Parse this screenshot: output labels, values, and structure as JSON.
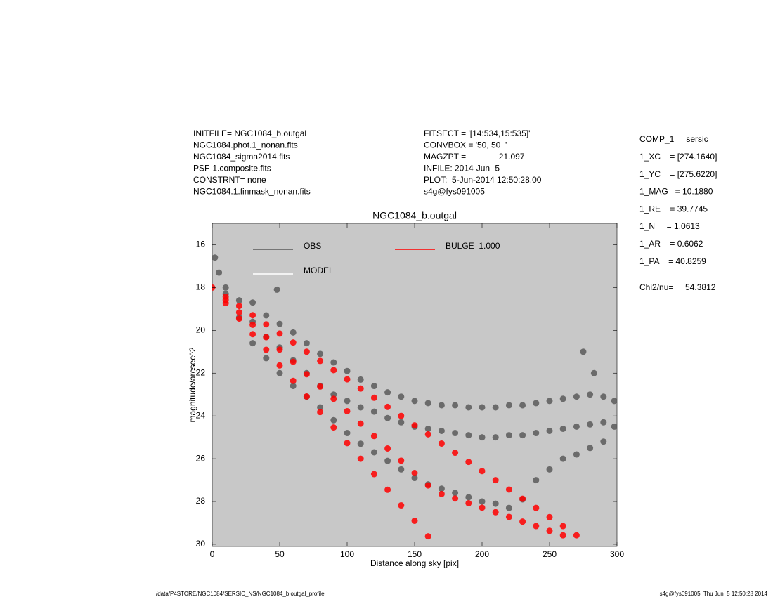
{
  "chart_data": {
    "type": "scatter",
    "title": "NGC1084_b.outgal",
    "xlabel": "Distance along sky [pix]",
    "ylabel": "magnitude/arcsec^2",
    "xlim": [
      0,
      300
    ],
    "ylim": [
      15,
      30.1
    ],
    "y_reversed": true,
    "xticks": [
      0,
      50,
      100,
      150,
      200,
      250,
      300
    ],
    "yticks": [
      16,
      18,
      20,
      22,
      24,
      26,
      28,
      30
    ],
    "info_left": [
      "INITFILE= NGC1084_b.outgal",
      "NGC1084.phot.1_nonan.fits",
      "NGC1084_sigma2014.fits",
      "PSF-1.composite.fits",
      "CONSTRNT= none",
      "NGC1084.1.finmask_nonan.fits"
    ],
    "info_middle": [
      "FITSECT = '[14:534,15:535]'",
      "CONVBOX = '50, 50  '",
      "MAGZPT =              21.097",
      "INFILE: 2014-Jun- 5",
      "PLOT:  5-Jun-2014 12:50:28.00",
      "s4g@fys091005"
    ],
    "parameters": [
      "COMP_1  = sersic",
      "1_XC    = [274.1640]",
      "1_YC    = [275.6220]",
      "1_MAG   = 10.1880",
      "1_RE    = 39.7745",
      "1_N     = 1.0613",
      "1_AR    = 0.6062",
      "1_PA    = 40.8259"
    ],
    "chi2": "Chi2/nu=     54.3812",
    "footer_left": "/data/P4STORE/NGC1084/SERSIC_NS/NGC1084_b.outgal_profile",
    "footer_right": "s4g@fys091005  Thu Jun  5 12:50:28 2014",
    "series": [
      {
        "name": "OBS",
        "color": "#5a5a5a",
        "x": [
          2,
          5,
          10,
          10,
          20,
          20,
          30,
          30,
          30,
          40,
          40,
          40,
          48,
          50,
          50,
          50,
          60,
          60,
          60,
          70,
          70,
          70,
          80,
          80,
          80,
          90,
          90,
          90,
          100,
          100,
          100,
          110,
          110,
          110,
          120,
          120,
          120,
          130,
          130,
          130,
          140,
          140,
          140,
          150,
          150,
          150,
          160,
          160,
          160,
          170,
          170,
          170,
          180,
          180,
          180,
          190,
          190,
          190,
          200,
          200,
          200,
          210,
          210,
          210,
          220,
          220,
          220,
          230,
          230,
          230,
          240,
          240,
          240,
          250,
          250,
          250,
          260,
          260,
          260,
          270,
          270,
          270,
          280,
          280,
          280,
          290,
          290,
          290,
          298,
          298,
          275,
          283
        ],
        "values": [
          16.6,
          17.3,
          18.0,
          18.3,
          18.6,
          19.4,
          18.7,
          19.6,
          20.6,
          19.3,
          20.3,
          21.3,
          18.1,
          19.7,
          20.8,
          22.0,
          20.1,
          21.4,
          22.6,
          20.6,
          22.0,
          23.1,
          21.1,
          22.6,
          23.6,
          21.5,
          23.0,
          24.2,
          21.9,
          23.3,
          24.8,
          22.3,
          23.6,
          25.3,
          22.6,
          23.8,
          25.7,
          22.9,
          24.1,
          26.1,
          23.1,
          24.3,
          26.5,
          23.3,
          24.5,
          26.9,
          23.4,
          24.6,
          27.2,
          23.5,
          24.7,
          27.4,
          23.5,
          24.8,
          27.6,
          23.6,
          24.9,
          27.8,
          23.6,
          25.0,
          28.0,
          23.6,
          25.0,
          28.1,
          23.5,
          24.9,
          28.3,
          23.5,
          24.9,
          27.9,
          23.4,
          24.8,
          27.0,
          23.3,
          24.7,
          26.5,
          23.2,
          24.6,
          26.0,
          23.1,
          24.5,
          25.8,
          23.0,
          24.4,
          25.5,
          23.1,
          24.3,
          25.2,
          23.3,
          24.5,
          21.0,
          22.0
        ]
      },
      {
        "name": "MODEL",
        "color": "#ffffff",
        "x": [],
        "values": []
      },
      {
        "name": "BULGE  1.000",
        "color": "#ff0000",
        "x": [
          0,
          10,
          10,
          10,
          20,
          20,
          20,
          30,
          30,
          30,
          40,
          40,
          40,
          50,
          50,
          50,
          60,
          60,
          60,
          70,
          70,
          70,
          80,
          80,
          80,
          90,
          90,
          90,
          100,
          100,
          100,
          110,
          110,
          110,
          120,
          120,
          120,
          130,
          130,
          130,
          140,
          140,
          140,
          150,
          150,
          150,
          160,
          160,
          160,
          170,
          170,
          180,
          180,
          190,
          190,
          200,
          200,
          210,
          210,
          220,
          220,
          230,
          230,
          240,
          240,
          250,
          250,
          260,
          260,
          270
        ],
        "values": [
          18.0,
          18.43,
          18.58,
          18.73,
          18.86,
          19.16,
          19.45,
          19.29,
          19.74,
          20.18,
          19.72,
          20.32,
          20.91,
          20.15,
          20.9,
          21.64,
          20.57,
          21.47,
          22.36,
          21.0,
          22.05,
          23.09,
          21.43,
          22.63,
          23.82,
          21.86,
          23.2,
          24.54,
          22.29,
          23.78,
          25.27,
          22.72,
          24.36,
          26.0,
          23.15,
          24.94,
          26.72,
          23.58,
          25.52,
          27.45,
          24.0,
          26.09,
          28.18,
          24.44,
          26.67,
          28.9,
          24.86,
          27.25,
          29.63,
          25.29,
          27.65,
          25.72,
          27.86,
          26.15,
          28.08,
          26.58,
          28.29,
          27.0,
          28.5,
          27.44,
          28.72,
          27.87,
          28.94,
          28.3,
          29.15,
          28.73,
          29.37,
          29.15,
          29.58,
          29.58
        ]
      }
    ]
  }
}
